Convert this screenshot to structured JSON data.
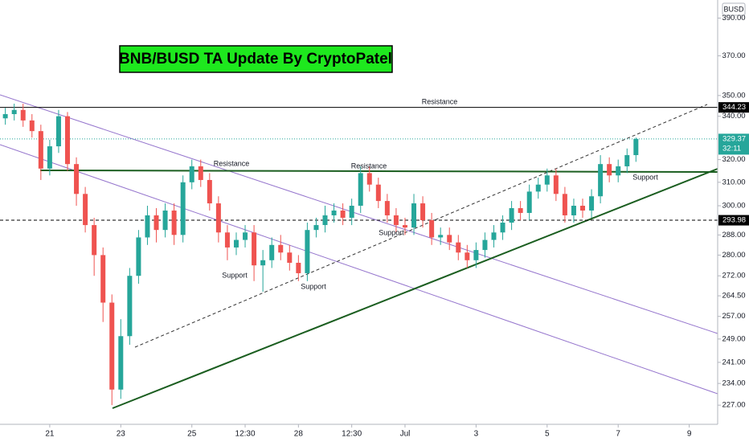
{
  "chart_data": {
    "type": "candlestick",
    "title": "BNB/BUSD TA Update By CryptoPatel",
    "currency": "BUSD",
    "log_scale": true,
    "up_color": "#26a69a",
    "down_color": "#ef5350",
    "xlim": [
      -1.4,
      18.8
    ],
    "xticks": [
      {
        "value": 0,
        "label": "21"
      },
      {
        "value": 2,
        "label": "23"
      },
      {
        "value": 4,
        "label": "25"
      },
      {
        "value": 5.5,
        "label": "12:30"
      },
      {
        "value": 7,
        "label": "28"
      },
      {
        "value": 8.5,
        "label": "12:30"
      },
      {
        "value": 10,
        "label": "Jul"
      },
      {
        "value": 12,
        "label": "3"
      },
      {
        "value": 14,
        "label": "5"
      },
      {
        "value": 16,
        "label": "7"
      },
      {
        "value": 18,
        "label": "9"
      }
    ],
    "ylim": [
      221,
      400
    ],
    "yticks": [
      {
        "value": 390,
        "label": "390.00"
      },
      {
        "value": 370,
        "label": "370.00"
      },
      {
        "value": 350,
        "label": "350.00"
      },
      {
        "value": 340,
        "label": "340.00"
      },
      {
        "value": 320,
        "label": "320.00"
      },
      {
        "value": 310,
        "label": "310.00"
      },
      {
        "value": 300,
        "label": "300.00"
      },
      {
        "value": 288,
        "label": "288.00"
      },
      {
        "value": 280,
        "label": "280.00"
      },
      {
        "value": 272,
        "label": "272.00"
      },
      {
        "value": 264.5,
        "label": "264.50"
      },
      {
        "value": 257,
        "label": "257.00"
      },
      {
        "value": 249,
        "label": "249.00"
      },
      {
        "value": 241,
        "label": "241.00"
      },
      {
        "value": 234,
        "label": "234.00"
      },
      {
        "value": 227,
        "label": "227.00"
      }
    ],
    "price_lines": [
      {
        "value": 344.23,
        "label": "344.23",
        "color": "#000000",
        "style": "solid"
      },
      {
        "value": 293.98,
        "label": "293.98",
        "color": "#000000",
        "style": "dashed"
      },
      {
        "value": 329.37,
        "label": "329.37",
        "color": "#26a69a",
        "style": "dotted",
        "countdown": "32:11"
      }
    ],
    "annotations": [
      "Resistance",
      "Resistance",
      "Resistance",
      "Support",
      "Support",
      "Support",
      "Support"
    ],
    "x": [
      -1.25,
      -1,
      -0.75,
      -0.5,
      -0.25,
      0,
      0.25,
      0.5,
      0.75,
      1,
      1.25,
      1.5,
      1.75,
      2,
      2.25,
      2.5,
      2.75,
      3,
      3.25,
      3.5,
      3.75,
      4,
      4.25,
      4.5,
      4.75,
      5,
      5.25,
      5.5,
      5.75,
      6,
      6.25,
      6.5,
      6.75,
      7,
      7.25,
      7.5,
      7.75,
      8,
      8.25,
      8.5,
      8.75,
      9,
      9.25,
      9.5,
      9.75,
      10,
      10.25,
      10.5,
      10.75,
      11,
      11.25,
      11.5,
      11.75,
      12,
      12.25,
      12.5,
      12.75,
      13,
      13.25,
      13.5,
      13.75,
      14,
      14.25,
      14.5,
      14.75,
      15,
      15.25,
      15.5,
      15.75,
      16,
      16.25,
      16.5
    ],
    "open": [
      339,
      341,
      343,
      338,
      333,
      316,
      326,
      340,
      318,
      305,
      292,
      280,
      262,
      232,
      250,
      272,
      287,
      296,
      290,
      298,
      288,
      310,
      317,
      311,
      301,
      289,
      283,
      286,
      289,
      276,
      278,
      284,
      281,
      277,
      273,
      290,
      292,
      296,
      298,
      295,
      300,
      314,
      309,
      302,
      296,
      292,
      291,
      301,
      294,
      287,
      288,
      285,
      281,
      278,
      282,
      286,
      289,
      293,
      299,
      297,
      306,
      309,
      313,
      305,
      296,
      300,
      298,
      304,
      318,
      313,
      317,
      322
    ],
    "high": [
      344,
      346,
      346,
      341,
      336,
      329,
      343,
      342,
      321,
      308,
      295,
      283,
      265,
      256,
      275,
      290,
      300,
      299,
      301,
      301,
      313,
      320,
      320,
      314,
      304,
      292,
      289,
      292,
      292,
      282,
      287,
      288,
      284,
      280,
      293,
      295,
      300,
      301,
      301,
      303,
      317,
      317,
      312,
      305,
      299,
      295,
      305,
      304,
      297,
      291,
      291,
      288,
      284,
      285,
      289,
      292,
      296,
      302,
      302,
      309,
      312,
      316,
      316,
      308,
      303,
      303,
      307,
      322,
      321,
      320,
      325,
      330
    ],
    "low": [
      336,
      338,
      335,
      330,
      311,
      313,
      323,
      315,
      300,
      289,
      272,
      255,
      227,
      229,
      247,
      269,
      284,
      285,
      287,
      284,
      285,
      307,
      308,
      298,
      285,
      278,
      280,
      283,
      270,
      266,
      275,
      278,
      274,
      270,
      270,
      287,
      289,
      293,
      292,
      292,
      297,
      306,
      299,
      293,
      289,
      288,
      288,
      291,
      284,
      284,
      282,
      278,
      275,
      275,
      279,
      283,
      286,
      290,
      294,
      294,
      303,
      306,
      302,
      293,
      293,
      295,
      295,
      301,
      310,
      310,
      314,
      319
    ],
    "close": [
      341,
      343,
      338,
      333,
      316,
      326,
      340,
      318,
      305,
      292,
      280,
      262,
      232,
      250,
      272,
      287,
      296,
      290,
      298,
      288,
      310,
      317,
      311,
      301,
      289,
      283,
      286,
      289,
      276,
      278,
      284,
      281,
      277,
      273,
      290,
      292,
      296,
      298,
      295,
      300,
      314,
      309,
      302,
      296,
      292,
      291,
      301,
      294,
      287,
      288,
      285,
      281,
      278,
      282,
      286,
      289,
      293,
      299,
      297,
      306,
      309,
      313,
      305,
      296,
      300,
      298,
      304,
      318,
      313,
      317,
      322,
      329.37
    ]
  }
}
